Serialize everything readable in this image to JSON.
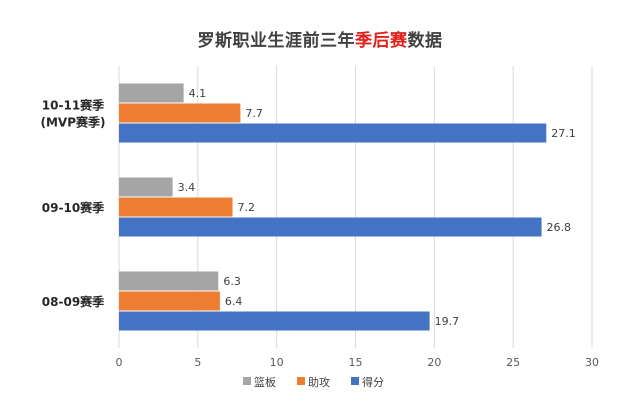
{
  "chart_data": {
    "type": "bar",
    "orientation": "horizontal",
    "title": {
      "prefix": "罗斯职业生涯前三年",
      "highlight": "季后赛",
      "suffix": "数据"
    },
    "categories": [
      [
        "10-11赛季",
        "(MVP赛季)"
      ],
      [
        "09-10赛季"
      ],
      [
        "08-09赛季"
      ]
    ],
    "series": [
      {
        "name": "篮板",
        "color": "#a5a5a5",
        "values": [
          4.1,
          3.4,
          6.3
        ]
      },
      {
        "name": "助攻",
        "color": "#ed7d31",
        "values": [
          7.7,
          7.2,
          6.4
        ]
      },
      {
        "name": "得分",
        "color": "#4472c4",
        "values": [
          27.1,
          26.8,
          19.7
        ]
      }
    ],
    "x_ticks": [
      "0",
      "5",
      "10",
      "15",
      "20",
      "25",
      "30"
    ],
    "xlim": [
      0,
      30
    ],
    "grid": true,
    "legend": "bottom"
  }
}
